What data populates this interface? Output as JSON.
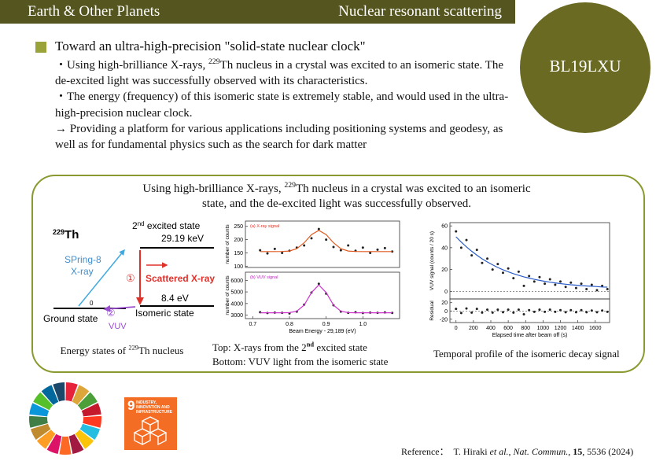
{
  "header": {
    "left": "Earth & Other Planets",
    "right": "Nuclear resonant scattering"
  },
  "badge": "BL19LXU",
  "summary": {
    "title": "Toward an ultra-high-precision \"solid-state nuclear clock\"",
    "points": [
      {
        "pre": "・Using high-brilliance X-rays, ",
        "sup": "229",
        "post": "Th nucleus in a crystal was excited to an isomeric state. The de-excited light was successfully observed with its characteristics."
      },
      {
        "pre": "・The energy (frequency) of this isomeric state is extremely stable, and would used in the ultra-high-precision nuclear clock."
      },
      {
        "pre": "→ Providing a platform for various applications including positioning systems and geodesy, as well as for fundamental physics such as the search for dark matter"
      }
    ]
  },
  "panel": {
    "heading": {
      "pre": "Using high-brilliance X-rays, ",
      "sup": "229",
      "post": "Th nucleus in a crystal was excited to an isomeric state, and the de-excited light was successfully observed."
    }
  },
  "figure1": {
    "nucleus": {
      "sup": "229",
      "post": "Th"
    },
    "excited": {
      "pre": "2",
      "sup": "nd",
      "post": " excited state"
    },
    "excited_energy": "29.19 keV",
    "source": "SPring-8",
    "source_beam": "X-ray",
    "step1": "①",
    "scattered": "Scattered X-ray",
    "isomer_energy": "8.4 eV",
    "ground_energy": "0",
    "isomer": "Isomeric state",
    "ground": "Ground state",
    "step2": "②",
    "emission": "VUV",
    "caption": {
      "pre": "Energy states of ",
      "sup": "229",
      "post": "Th nucleus"
    }
  },
  "figure2": {
    "caption": [
      {
        "pre": "Top: X-rays from the 2",
        "sup": "nd",
        "post": " excited state"
      },
      {
        "pre": "Bottom: VUV light from the isomeric state"
      }
    ]
  },
  "figure3": {
    "caption": "Temporal profile of the isomeric decay signal"
  },
  "sdg": {
    "number": "9",
    "label": "INDUSTRY, INNOVATION AND INFRASTRUCTURE"
  },
  "reference": {
    "label": "Reference：",
    "parts": [
      "T. Hiraki ",
      "et al.",
      ", ",
      "Nat. Commun.",
      ", ",
      "15",
      ", 5536 (2024)"
    ]
  },
  "chart_data": [
    {
      "type": "scatter",
      "title": "(a) X-ray signal",
      "title_color": "#e03020",
      "ylabel": "number of counts",
      "xlim": [
        0.68,
        1.1
      ],
      "ylim": [
        95,
        270
      ],
      "yticks": [
        100,
        150,
        200,
        250
      ],
      "series": [
        {
          "style": "points",
          "color": "#222222",
          "x": [
            0.72,
            0.74,
            0.76,
            0.78,
            0.8,
            0.82,
            0.84,
            0.86,
            0.88,
            0.9,
            0.92,
            0.94,
            0.96,
            0.98,
            1.0,
            1.02,
            1.04,
            1.06,
            1.08
          ],
          "values": [
            160,
            148,
            165,
            150,
            158,
            170,
            178,
            205,
            240,
            200,
            172,
            160,
            178,
            158,
            170,
            150,
            162,
            168,
            155
          ]
        },
        {
          "style": "line",
          "color": "#e05a20",
          "x": [
            0.72,
            0.74,
            0.76,
            0.78,
            0.8,
            0.82,
            0.84,
            0.86,
            0.88,
            0.9,
            0.92,
            0.94,
            0.96,
            0.98,
            1.0,
            1.02,
            1.04,
            1.06,
            1.08
          ],
          "values": [
            155,
            155,
            155,
            155.3,
            157,
            166,
            188,
            219,
            235,
            219,
            188,
            166,
            157,
            155.3,
            155,
            155,
            155,
            155,
            155
          ]
        }
      ]
    },
    {
      "type": "scatter",
      "title": "(b) VUV signal",
      "title_color": "#c020c0",
      "ylabel": "number of counts",
      "xlabel": "Beam Energy - 29,189 (eV)",
      "xlim": [
        0.68,
        1.1
      ],
      "ylim": [
        2700,
        6700
      ],
      "yticks": [
        3000,
        4000,
        5000,
        6000
      ],
      "xticks": [
        {
          "value": 0.7,
          "label": "0.7"
        },
        {
          "value": 0.8,
          "label": "0.8"
        },
        {
          "value": 0.9,
          "label": "0.9"
        },
        {
          "value": 1.0,
          "label": "1.0"
        }
      ],
      "series": [
        {
          "style": "points",
          "color": "#222222",
          "x": [
            0.72,
            0.74,
            0.76,
            0.78,
            0.8,
            0.82,
            0.84,
            0.86,
            0.88,
            0.9,
            0.92,
            0.94,
            0.96,
            0.98,
            1.0,
            1.02,
            1.04,
            1.06,
            1.08
          ],
          "values": [
            3250,
            3180,
            3220,
            3200,
            3150,
            3300,
            3900,
            4950,
            5700,
            4850,
            3850,
            3300,
            3200,
            3250,
            3180,
            3220,
            3200,
            3230,
            3190
          ]
        },
        {
          "style": "line",
          "color": "#cc33cc",
          "x": [
            0.72,
            0.74,
            0.76,
            0.78,
            0.8,
            0.82,
            0.84,
            0.86,
            0.88,
            0.9,
            0.92,
            0.94,
            0.96,
            0.98,
            1.0,
            1.02,
            1.04,
            1.06,
            1.08
          ],
          "values": [
            3200,
            3200,
            3200,
            3200,
            3214,
            3334,
            3867,
            4942,
            5600,
            4942,
            3867,
            3334,
            3214,
            3200,
            3200,
            3200,
            3200,
            3200,
            3200
          ]
        }
      ]
    },
    {
      "type": "scatter",
      "ylabel": "VUV signal (counts / 20 s)",
      "xlim": [
        -70,
        1765
      ],
      "ylim": [
        -7,
        63
      ],
      "yticks": [
        0,
        20,
        40,
        60
      ],
      "series": [
        {
          "style": "points",
          "color": "#222222",
          "x": [
            0,
            60,
            120,
            180,
            240,
            300,
            360,
            420,
            480,
            540,
            600,
            660,
            720,
            780,
            840,
            900,
            960,
            1020,
            1080,
            1140,
            1200,
            1260,
            1320,
            1380,
            1440,
            1500,
            1560,
            1620,
            1680,
            1740
          ],
          "values": [
            55,
            40,
            47,
            33,
            38,
            26,
            30,
            20,
            25,
            17,
            21,
            12,
            18,
            5,
            14,
            9,
            13,
            7,
            11,
            6,
            9,
            4,
            8,
            3,
            7,
            2,
            6,
            1,
            5,
            2
          ]
        },
        {
          "style": "line",
          "color": "#2a5cc8",
          "x": [
            0,
            60,
            120,
            180,
            240,
            300,
            360,
            420,
            480,
            540,
            600,
            660,
            720,
            780,
            840,
            900,
            960,
            1020,
            1080,
            1140,
            1200,
            1260,
            1320,
            1380,
            1440,
            1500,
            1560,
            1620,
            1680,
            1740
          ],
          "values": [
            50,
            45.2,
            40.8,
            36.7,
            33.1,
            29.8,
            26.9,
            24.3,
            21.9,
            19.8,
            17.9,
            16.2,
            14.7,
            13.3,
            12.1,
            11,
            10,
            9.2,
            8.4,
            7.7,
            7.1,
            6.5,
            6,
            5.6,
            5.2,
            4.9,
            4.6,
            4.3,
            4,
            3.8
          ]
        }
      ]
    },
    {
      "type": "scatter",
      "ylabel": "Residual",
      "xlabel": "Elapsed time after beam off (s)",
      "xlim": [
        -70,
        1765
      ],
      "ylim": [
        -28,
        29
      ],
      "yticks": [
        -20,
        0,
        20
      ],
      "xticks": [
        0,
        200,
        400,
        600,
        800,
        1000,
        1200,
        1400,
        1600
      ],
      "series": [
        {
          "style": "points",
          "color": "#222222",
          "x": [
            0,
            60,
            120,
            180,
            240,
            300,
            360,
            420,
            480,
            540,
            600,
            660,
            720,
            780,
            840,
            900,
            960,
            1020,
            1080,
            1140,
            1200,
            1260,
            1320,
            1380,
            1440,
            1500,
            1560,
            1620,
            1680,
            1740
          ],
          "values": [
            5,
            -5,
            6,
            -4,
            5,
            -4,
            3,
            -4,
            3,
            -3,
            3,
            -4,
            3,
            -8,
            2,
            -2,
            3,
            -2,
            3,
            -2,
            2,
            -3,
            2,
            -3,
            2,
            -3,
            1,
            -3,
            1,
            -2
          ]
        }
      ]
    }
  ]
}
